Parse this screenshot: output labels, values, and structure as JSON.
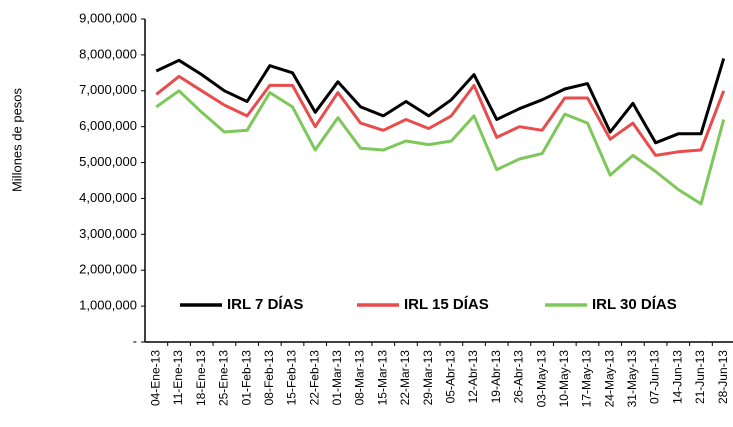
{
  "chart_data": {
    "type": "line",
    "y_label": "Millones de pesos",
    "categories": [
      "04-Ene-13",
      "11-Ene-13",
      "18-Ene-13",
      "25-Ene-13",
      "01-Feb-13",
      "08-Feb-13",
      "15-Feb-13",
      "22-Feb-13",
      "01-Mar-13",
      "08-Mar-13",
      "15-Mar-13",
      "22-Mar-13",
      "29-Mar-13",
      "05-Abr-13",
      "12-Abr-13",
      "19-Abr-13",
      "26-Abr-13",
      "03-May-13",
      "10-May-13",
      "17-May-13",
      "24-May-13",
      "31-May-13",
      "07-Jun-13",
      "14-Jun-13",
      "21-Jun-13",
      "28-Jun-13"
    ],
    "series": [
      {
        "name": "IRL 7 DÍAS",
        "color": "#000000",
        "values": [
          7550000,
          7850000,
          7450000,
          7000000,
          6700000,
          7700000,
          7500000,
          6400000,
          7250000,
          6550000,
          6300000,
          6700000,
          6300000,
          6750000,
          7450000,
          6200000,
          6500000,
          6750000,
          7050000,
          7200000,
          5850000,
          6650000,
          5550000,
          5800000,
          5800000,
          7900000
        ]
      },
      {
        "name": "IRL 15 DÍAS",
        "color": "#e84c4c",
        "values": [
          6900000,
          7400000,
          7000000,
          6600000,
          6300000,
          7150000,
          7150000,
          6000000,
          6950000,
          6100000,
          5900000,
          6200000,
          5950000,
          6300000,
          7150000,
          5700000,
          6000000,
          5900000,
          6800000,
          6800000,
          5650000,
          6100000,
          5200000,
          5300000,
          5350000,
          7000000
        ]
      },
      {
        "name": "IRL 30 DÍAS",
        "color": "#7dc85a",
        "values": [
          6550000,
          7000000,
          6400000,
          5850000,
          5900000,
          6950000,
          6550000,
          5350000,
          6250000,
          5400000,
          5350000,
          5600000,
          5500000,
          5600000,
          6300000,
          4800000,
          5100000,
          5250000,
          6350000,
          6100000,
          4650000,
          5200000,
          4750000,
          4250000,
          3850000,
          6200000
        ]
      }
    ],
    "ylim": [
      0,
      9000000
    ],
    "yticks": [
      {
        "value": 0,
        "label": "-"
      },
      {
        "value": 1000000,
        "label": "1,000,000"
      },
      {
        "value": 2000000,
        "label": "2,000,000"
      },
      {
        "value": 3000000,
        "label": "3,000,000"
      },
      {
        "value": 4000000,
        "label": "4,000,000"
      },
      {
        "value": 5000000,
        "label": "5,000,000"
      },
      {
        "value": 6000000,
        "label": "6,000,000"
      },
      {
        "value": 7000000,
        "label": "7,000,000"
      },
      {
        "value": 8000000,
        "label": "8,000,000"
      },
      {
        "value": 9000000,
        "label": "9,000,000"
      }
    ],
    "grid": false,
    "legend": "bottom"
  }
}
